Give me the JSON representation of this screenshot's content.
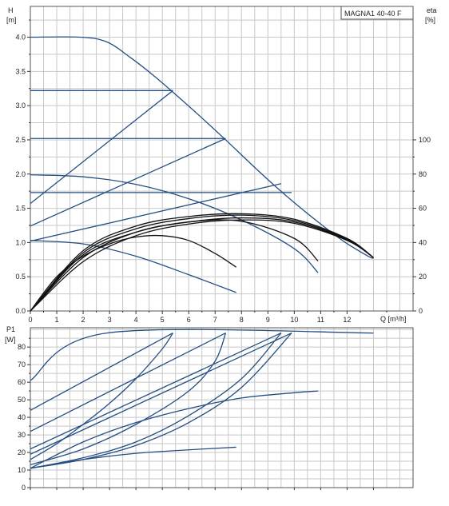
{
  "chart_data": [
    {
      "type": "line",
      "panel": "head",
      "title": "MAGNA1 40-40 F",
      "y_label_top": "H",
      "y_label_unit": "[m]",
      "y2_label_top": "eta",
      "y2_label_unit": "[%]",
      "x_label": "Q [m³/h]",
      "xlim": [
        0,
        14.5
      ],
      "ylim": [
        0,
        4.45
      ],
      "y2lim": [
        0,
        100
      ],
      "x_ticks": [
        0,
        1,
        2,
        3,
        4,
        5,
        6,
        7,
        8,
        9,
        10,
        11,
        12
      ],
      "y_ticks": [
        0.0,
        0.5,
        1.0,
        1.5,
        2.0,
        2.5,
        3.0,
        3.5,
        4.0
      ],
      "y_tick_labels": [
        "0.0",
        "0.5",
        "1.0",
        "1.5",
        "2.0",
        "2.5",
        "3.0",
        "3.5",
        "4.0"
      ],
      "y2_ticks": [
        0,
        20,
        40,
        60,
        80,
        100
      ],
      "grid": true,
      "series": [
        {
          "color": "#244f83",
          "x": [
            0,
            1.9,
            2.9,
            3.8,
            4.7,
            5.6,
            6.5,
            7.4,
            8.3,
            9.2,
            10.1,
            11,
            11.9,
            12.8,
            13
          ],
          "y": [
            4.0,
            4.0,
            3.93,
            3.7,
            3.43,
            3.13,
            2.82,
            2.5,
            2.17,
            1.85,
            1.55,
            1.27,
            1.01,
            0.8,
            0.77
          ]
        },
        {
          "color": "#244f83",
          "x": [
            0,
            5.4
          ],
          "y": [
            3.22,
            3.22
          ]
        },
        {
          "color": "#244f83",
          "x": [
            0,
            7.4
          ],
          "y": [
            2.52,
            2.52
          ]
        },
        {
          "color": "#244f83",
          "x": [
            0,
            9.9
          ],
          "y": [
            1.73,
            1.73
          ]
        },
        {
          "color": "#244f83",
          "x": [
            0,
            5.4
          ],
          "y": [
            1.57,
            3.22
          ]
        },
        {
          "color": "#244f83",
          "x": [
            0,
            7.4
          ],
          "y": [
            1.24,
            2.52
          ]
        },
        {
          "color": "#244f83",
          "x": [
            0,
            9.5
          ],
          "y": [
            1.02,
            1.86
          ]
        },
        {
          "color": "#244f83",
          "x": [
            0,
            2,
            4,
            6,
            8,
            10,
            10.9
          ],
          "y": [
            1.99,
            1.96,
            1.85,
            1.64,
            1.33,
            0.91,
            0.56
          ]
        },
        {
          "color": "#244f83",
          "x": [
            0,
            2,
            4,
            6,
            7.8
          ],
          "y": [
            1.03,
            0.98,
            0.8,
            0.53,
            0.27
          ]
        },
        {
          "color": "#111111",
          "x": [
            0,
            1,
            2,
            3,
            4,
            5,
            6,
            7,
            7.8
          ],
          "y": [
            0,
            0.5,
            0.8,
            0.98,
            1.08,
            1.1,
            1.03,
            0.84,
            0.64
          ]
        },
        {
          "color": "#111111",
          "x": [
            0,
            2,
            4,
            6,
            8,
            10,
            10.9
          ],
          "y": [
            0,
            0.82,
            1.15,
            1.3,
            1.31,
            1.06,
            0.73
          ]
        },
        {
          "color": "#111111",
          "x": [
            0,
            2,
            4,
            6,
            8,
            10,
            12,
            13
          ],
          "y": [
            0,
            0.85,
            1.2,
            1.35,
            1.4,
            1.32,
            1.05,
            0.78
          ]
        },
        {
          "color": "#111111",
          "x": [
            0,
            2,
            4,
            6,
            8,
            10,
            12,
            13
          ],
          "y": [
            0,
            0.88,
            1.24,
            1.38,
            1.42,
            1.34,
            1.06,
            0.78
          ]
        },
        {
          "color": "#111111",
          "x": [
            0,
            2,
            4,
            6,
            8,
            10,
            12,
            13
          ],
          "y": [
            0,
            0.78,
            1.15,
            1.3,
            1.36,
            1.3,
            1.04,
            0.78
          ]
        },
        {
          "color": "#111111",
          "x": [
            0,
            2,
            4,
            6,
            8,
            10,
            12,
            13
          ],
          "y": [
            0,
            0.72,
            1.1,
            1.27,
            1.33,
            1.28,
            1.03,
            0.78
          ]
        }
      ]
    },
    {
      "type": "line",
      "panel": "power",
      "y_label_top": "P1",
      "y_label_unit": "[W]",
      "xlim": [
        0,
        14.5
      ],
      "ylim": [
        0,
        91
      ],
      "y_ticks": [
        0,
        10,
        20,
        30,
        40,
        50,
        60,
        70,
        80
      ],
      "grid": true,
      "series": [
        {
          "color": "#244f83",
          "x": [
            0,
            2.9,
            13
          ],
          "y": [
            61,
            88,
            88
          ]
        },
        {
          "color": "#244f83",
          "x": [
            0,
            5.4
          ],
          "y": [
            44,
            88
          ]
        },
        {
          "color": "#244f83",
          "x": [
            0,
            7.4
          ],
          "y": [
            32,
            88
          ]
        },
        {
          "color": "#244f83",
          "x": [
            0,
            9.5
          ],
          "y": [
            22,
            88
          ]
        },
        {
          "color": "#244f83",
          "x": [
            0,
            9.9
          ],
          "y": [
            19,
            88
          ]
        },
        {
          "color": "#244f83",
          "x": [
            0,
            1,
            2,
            3,
            4,
            5,
            5.4
          ],
          "y": [
            16,
            25,
            36,
            48,
            62,
            79,
            88
          ]
        },
        {
          "color": "#244f83",
          "x": [
            0,
            2,
            4,
            6,
            7,
            7.4
          ],
          "y": [
            13,
            22,
            36,
            55,
            72,
            88
          ]
        },
        {
          "color": "#244f83",
          "x": [
            0,
            2,
            4,
            6,
            8,
            9.5
          ],
          "y": [
            11,
            17,
            26,
            41,
            62,
            88
          ]
        },
        {
          "color": "#244f83",
          "x": [
            0,
            2,
            4,
            6,
            8,
            9.9
          ],
          "y": [
            11,
            16,
            24,
            37,
            57,
            88
          ]
        },
        {
          "color": "#244f83",
          "x": [
            0,
            2,
            4,
            6,
            8,
            10,
            10.9
          ],
          "y": [
            11,
            26,
            37,
            45,
            51,
            54,
            55
          ]
        },
        {
          "color": "#244f83",
          "x": [
            0,
            2,
            4,
            6,
            7.8
          ],
          "y": [
            11,
            16,
            19.5,
            21.5,
            23
          ]
        }
      ]
    }
  ]
}
